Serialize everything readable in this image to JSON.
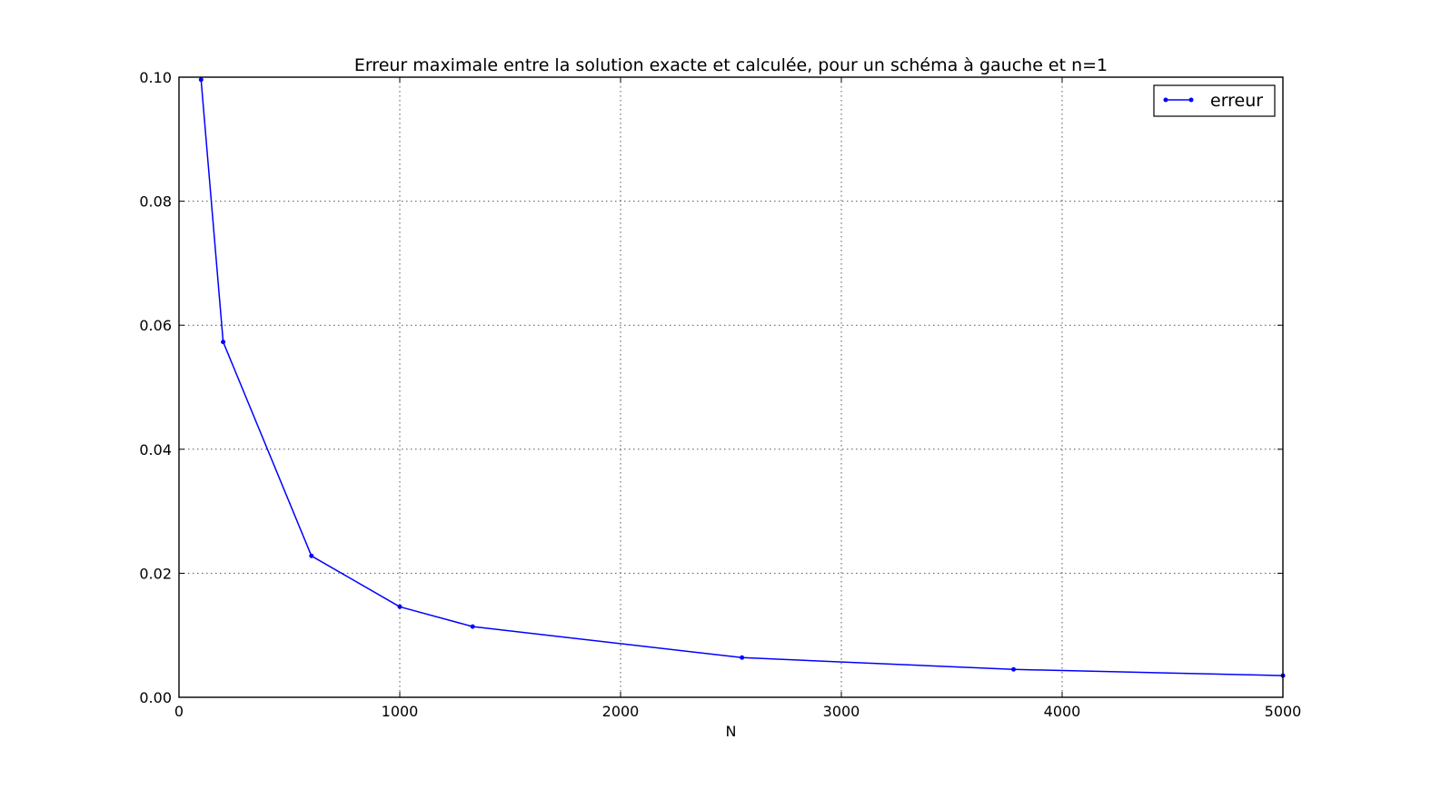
{
  "chart_data": {
    "type": "line",
    "title": "Erreur maximale entre la solution exacte et calculée, pour un schéma à gauche et n=1",
    "xlabel": "N",
    "ylabel": "",
    "xlim": [
      0,
      5000
    ],
    "ylim": [
      0,
      0.1
    ],
    "xticks": [
      0,
      1000,
      2000,
      3000,
      4000,
      5000
    ],
    "xtick_labels": [
      "0",
      "1000",
      "2000",
      "3000",
      "4000",
      "5000"
    ],
    "yticks": [
      0,
      0.02,
      0.04,
      0.06,
      0.08,
      0.1
    ],
    "ytick_labels": [
      "0.00",
      "0.02",
      "0.04",
      "0.06",
      "0.08",
      "0.10"
    ],
    "grid": true,
    "legend_position": "top-right",
    "series": [
      {
        "name": "erreur",
        "color": "#0000ff",
        "x": [
          100,
          200,
          600,
          1000,
          1330,
          2550,
          3780,
          5000
        ],
        "y": [
          0.0996,
          0.0573,
          0.0228,
          0.0146,
          0.0114,
          0.0064,
          0.0045,
          0.0035
        ]
      }
    ]
  }
}
